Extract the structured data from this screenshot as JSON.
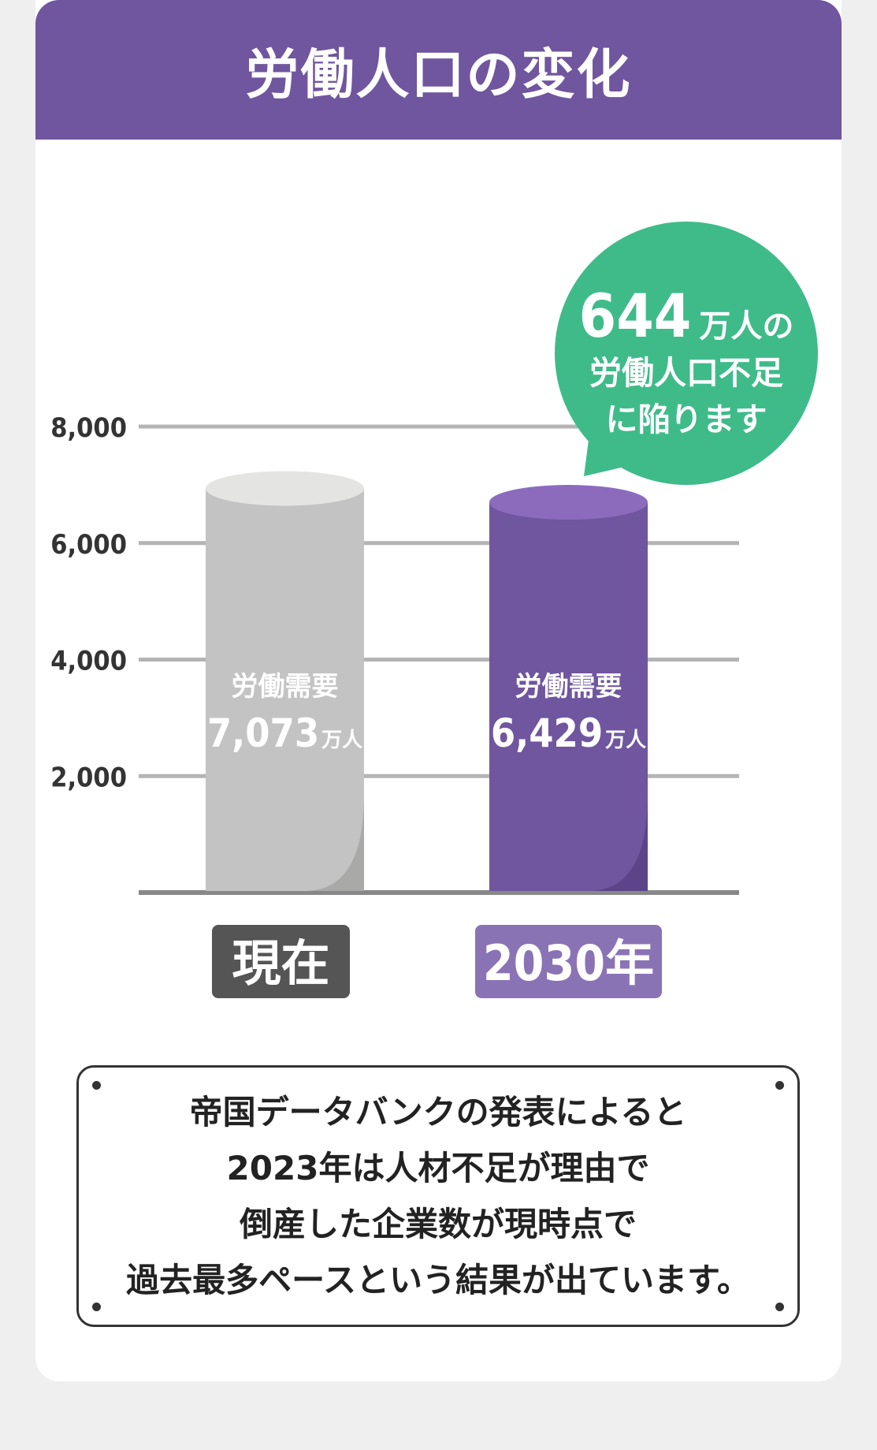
{
  "header": {
    "title": "労働人口の変化"
  },
  "chart_data": {
    "type": "bar",
    "categories": [
      "現在",
      "2030年"
    ],
    "values": [
      7073,
      6429
    ],
    "ylim": [
      0,
      8000
    ],
    "y_ticks": [
      2000,
      4000,
      6000,
      8000
    ],
    "y_tick_labels": [
      "2,000",
      "4,000",
      "6,000",
      "8,000"
    ],
    "grid": true,
    "bar_titles": [
      "労働需要",
      "労働需要"
    ],
    "bar_value_labels": [
      "7,073",
      "6,429"
    ],
    "unit": "万人",
    "bar_colors": [
      "#c2c3c2",
      "#70559f"
    ],
    "category_badge_colors": [
      "#555555",
      "#8a73b5"
    ],
    "callout": {
      "number": "644",
      "unit": "万人の",
      "line2": "労働人口不足",
      "line3": "に陥ります",
      "color": "#3fbb8a"
    }
  },
  "note": {
    "lines": [
      "帝国データバンクの発表によると",
      "2023年は人材不足が理由で",
      "倒産した企業数が現時点で",
      "過去最多ペースという結果が出ています。"
    ]
  }
}
